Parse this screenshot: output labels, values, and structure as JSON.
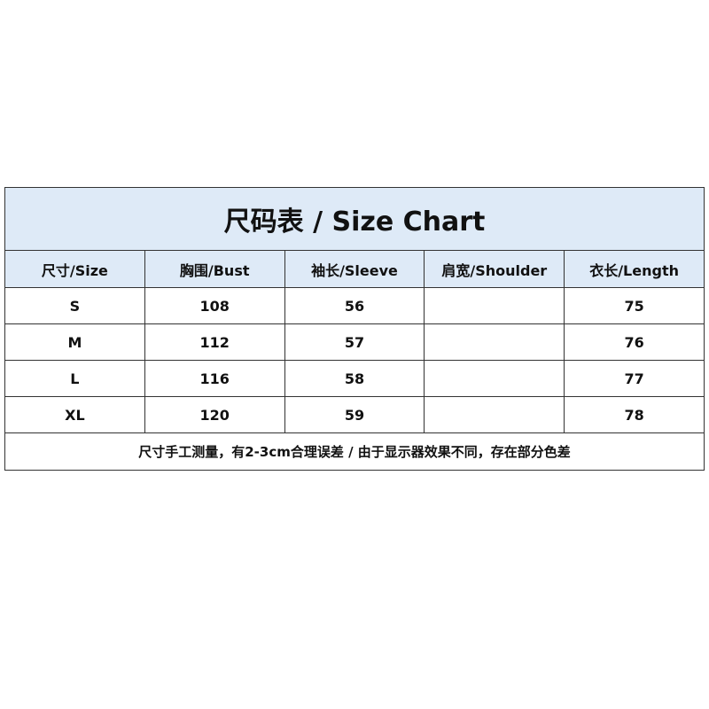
{
  "title": "尺码表 / Size Chart",
  "headers": [
    "尺寸/Size",
    "胸围/Bust",
    "袖长/Sleeve",
    "肩宽/Shoulder",
    "衣长/Length"
  ],
  "rows": [
    [
      "S",
      "108",
      "56",
      "",
      "75"
    ],
    [
      "M",
      "112",
      "57",
      "",
      "76"
    ],
    [
      "L",
      "116",
      "58",
      "",
      "77"
    ],
    [
      "XL",
      "120",
      "59",
      "",
      "78"
    ]
  ],
  "note": "尺寸手工测量，有2-3cm合理误差 / 由于显示器效果不同，存在部分色差",
  "colors": {
    "header_bg": "#deeaf7",
    "border": "#333333"
  }
}
